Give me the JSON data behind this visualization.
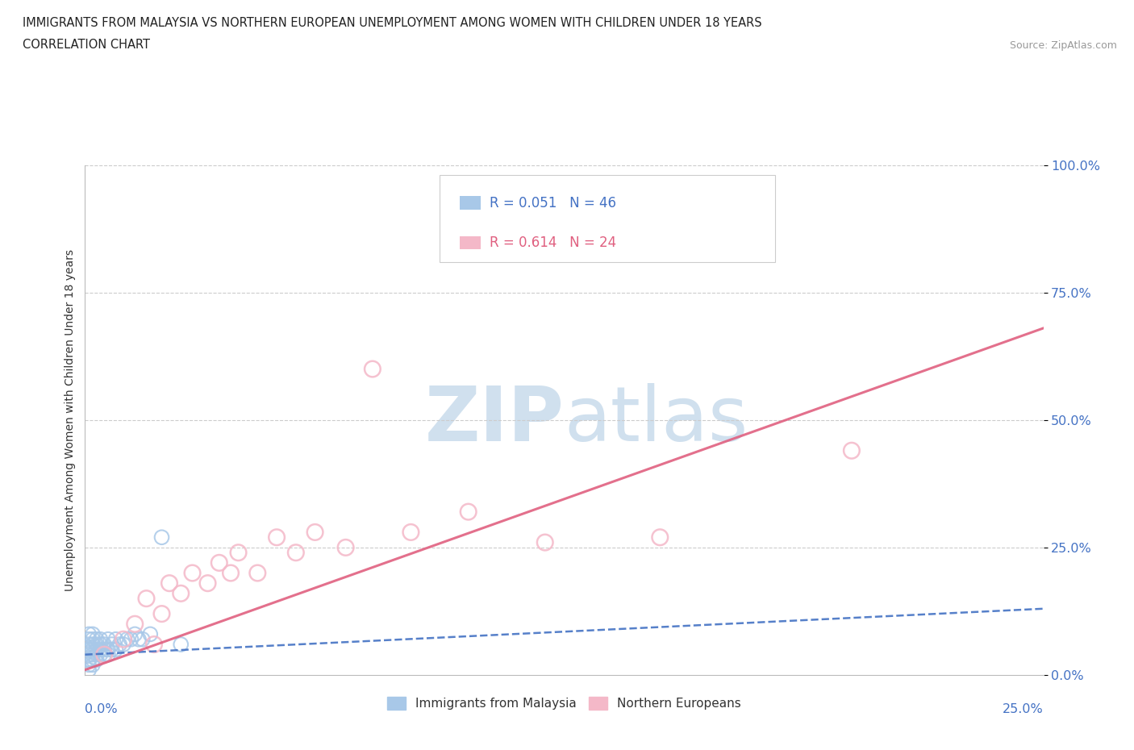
{
  "title_line1": "IMMIGRANTS FROM MALAYSIA VS NORTHERN EUROPEAN UNEMPLOYMENT AMONG WOMEN WITH CHILDREN UNDER 18 YEARS",
  "title_line2": "CORRELATION CHART",
  "source": "Source: ZipAtlas.com",
  "xlabel_bottom_left": "0.0%",
  "xlabel_bottom_right": "25.0%",
  "ylabel": "Unemployment Among Women with Children Under 18 years",
  "ytick_labels": [
    "0.0%",
    "25.0%",
    "50.0%",
    "75.0%",
    "100.0%"
  ],
  "ytick_values": [
    0.0,
    0.25,
    0.5,
    0.75,
    1.0
  ],
  "xmin": 0.0,
  "xmax": 0.25,
  "ymin": 0.0,
  "ymax": 1.0,
  "legend_r1": "R = 0.051",
  "legend_n1": "N = 46",
  "legend_r2": "R = 0.614",
  "legend_n2": "N = 24",
  "legend_label1": "Immigrants from Malaysia",
  "legend_label2": "Northern Europeans",
  "color_blue": "#a8c8e8",
  "color_pink": "#f4b8c8",
  "color_blue_dark": "#4472c4",
  "color_pink_dark": "#e06080",
  "color_axis_label": "#4472c4",
  "watermark_color": "#d0e0ee",
  "malaysia_x": [
    0.001,
    0.001,
    0.001,
    0.001,
    0.001,
    0.001,
    0.001,
    0.001,
    0.001,
    0.001,
    0.002,
    0.002,
    0.002,
    0.002,
    0.002,
    0.002,
    0.002,
    0.003,
    0.003,
    0.003,
    0.003,
    0.003,
    0.004,
    0.004,
    0.004,
    0.004,
    0.005,
    0.005,
    0.005,
    0.006,
    0.006,
    0.006,
    0.007,
    0.007,
    0.008,
    0.008,
    0.009,
    0.01,
    0.011,
    0.012,
    0.013,
    0.014,
    0.015,
    0.017,
    0.02,
    0.025
  ],
  "malaysia_y": [
    0.01,
    0.02,
    0.03,
    0.04,
    0.05,
    0.06,
    0.07,
    0.08,
    0.05,
    0.03,
    0.02,
    0.04,
    0.06,
    0.05,
    0.07,
    0.03,
    0.08,
    0.04,
    0.06,
    0.05,
    0.07,
    0.03,
    0.05,
    0.06,
    0.04,
    0.07,
    0.04,
    0.06,
    0.05,
    0.05,
    0.07,
    0.04,
    0.05,
    0.06,
    0.05,
    0.07,
    0.06,
    0.06,
    0.07,
    0.07,
    0.08,
    0.07,
    0.07,
    0.08,
    0.27,
    0.06
  ],
  "northern_x": [
    0.005,
    0.01,
    0.013,
    0.016,
    0.018,
    0.02,
    0.022,
    0.025,
    0.028,
    0.032,
    0.035,
    0.038,
    0.04,
    0.045,
    0.05,
    0.055,
    0.06,
    0.068,
    0.075,
    0.085,
    0.1,
    0.12,
    0.15,
    0.2
  ],
  "northern_y": [
    0.04,
    0.07,
    0.1,
    0.15,
    0.06,
    0.12,
    0.18,
    0.16,
    0.2,
    0.18,
    0.22,
    0.2,
    0.24,
    0.2,
    0.27,
    0.24,
    0.28,
    0.25,
    0.6,
    0.28,
    0.32,
    0.26,
    0.27,
    0.44
  ],
  "blue_trend_x": [
    0.0,
    0.25
  ],
  "blue_trend_y": [
    0.04,
    0.13
  ],
  "pink_trend_x": [
    0.0,
    0.25
  ],
  "pink_trend_y": [
    0.01,
    0.68
  ]
}
